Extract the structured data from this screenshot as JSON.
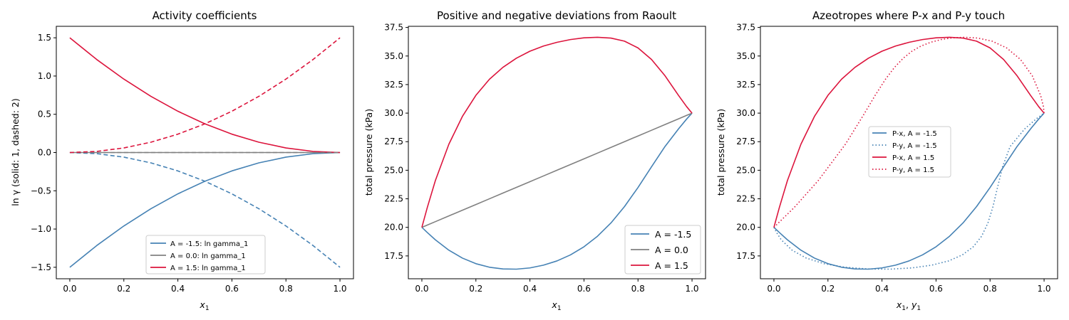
{
  "colors": {
    "neg": "#4682b4",
    "zero": "#808080",
    "pos": "#dc143c"
  },
  "chart_data": [
    {
      "type": "line",
      "title": "Activity coefficients",
      "xlabel": "x1",
      "ylabel": "ln γ (solid: 1, dashed: 2)",
      "xlim": [
        -0.05,
        1.05
      ],
      "ylim": [
        -1.65,
        1.65
      ],
      "xticks": [
        0.0,
        0.2,
        0.4,
        0.6,
        0.8,
        1.0
      ],
      "xtick_labels": [
        "0.0",
        "0.2",
        "0.4",
        "0.6",
        "0.8",
        "1.0"
      ],
      "yticks": [
        -1.5,
        -1.0,
        -0.5,
        0.0,
        0.5,
        1.0,
        1.5
      ],
      "ytick_labels": [
        "−1.5",
        "−1.0",
        "−0.5",
        "0.0",
        "0.5",
        "1.0",
        "1.5"
      ],
      "legend_position": "lower-center",
      "x": [
        0,
        0.1,
        0.2,
        0.3,
        0.4,
        0.5,
        0.6,
        0.7,
        0.8,
        0.9,
        1.0
      ],
      "series": [
        {
          "name": "A = -1.5: ln gamma_1",
          "color_key": "neg",
          "style": "solid",
          "legend": true,
          "y": [
            -1.5,
            -1.215,
            -0.96,
            -0.735,
            -0.54,
            -0.375,
            -0.24,
            -0.135,
            -0.06,
            -0.015,
            0
          ]
        },
        {
          "name": "A = 0.0: ln gamma_1",
          "color_key": "zero",
          "style": "solid",
          "legend": true,
          "y": [
            0,
            0,
            0,
            0,
            0,
            0,
            0,
            0,
            0,
            0,
            0
          ]
        },
        {
          "name": "A = 1.5: ln gamma_1",
          "color_key": "pos",
          "style": "solid",
          "legend": true,
          "y": [
            1.5,
            1.215,
            0.96,
            0.735,
            0.54,
            0.375,
            0.24,
            0.135,
            0.06,
            0.015,
            0
          ]
        },
        {
          "color_key": "neg",
          "style": "dashed",
          "legend": false,
          "y": [
            0,
            -0.015,
            -0.06,
            -0.135,
            -0.24,
            -0.375,
            -0.54,
            -0.735,
            -0.96,
            -1.215,
            -1.5
          ]
        },
        {
          "color_key": "zero",
          "style": "dashed",
          "legend": false,
          "y": [
            0,
            0,
            0,
            0,
            0,
            0,
            0,
            0,
            0,
            0,
            0
          ]
        },
        {
          "color_key": "pos",
          "style": "dashed",
          "legend": false,
          "y": [
            0,
            0.015,
            0.06,
            0.135,
            0.24,
            0.375,
            0.54,
            0.735,
            0.96,
            1.215,
            1.5
          ]
        }
      ]
    },
    {
      "type": "line",
      "title": "Positive and negative deviations from Raoult",
      "xlabel": "x1",
      "ylabel": "total pressure (kPa)",
      "xlim": [
        -0.05,
        1.05
      ],
      "ylim": [
        15.5,
        37.6
      ],
      "xticks": [
        0.0,
        0.2,
        0.4,
        0.6,
        0.8,
        1.0
      ],
      "xtick_labels": [
        "0.0",
        "0.2",
        "0.4",
        "0.6",
        "0.8",
        "1.0"
      ],
      "yticks": [
        17.5,
        20.0,
        22.5,
        25.0,
        27.5,
        30.0,
        32.5,
        35.0,
        37.5
      ],
      "ytick_labels": [
        "17.5",
        "20.0",
        "22.5",
        "25.0",
        "27.5",
        "30.0",
        "32.5",
        "35.0",
        "37.5"
      ],
      "legend_position": "lower-right",
      "x": [
        0,
        0.02,
        0.05,
        0.1,
        0.15,
        0.2,
        0.25,
        0.3,
        0.35,
        0.4,
        0.45,
        0.5,
        0.55,
        0.6,
        0.65,
        0.7,
        0.75,
        0.8,
        0.85,
        0.9,
        0.95,
        0.98,
        1.0
      ],
      "series": [
        {
          "name": "A = -1.5",
          "color_key": "neg",
          "style": "solid",
          "legend": true,
          "y": [
            20.0,
            19.55,
            18.91,
            18.0,
            17.31,
            16.82,
            16.51,
            16.36,
            16.34,
            16.45,
            16.69,
            17.06,
            17.59,
            18.3,
            19.22,
            20.39,
            21.82,
            23.49,
            25.3,
            27.08,
            28.62,
            29.48,
            30.0
          ]
        },
        {
          "name": "A = 0.0",
          "color_key": "zero",
          "style": "solid",
          "legend": true,
          "y": [
            20.0,
            20.2,
            20.5,
            21.0,
            21.5,
            22.0,
            22.5,
            23.0,
            23.5,
            24.0,
            24.5,
            25.0,
            25.5,
            26.0,
            26.5,
            27.0,
            27.5,
            28.0,
            28.5,
            29.0,
            29.5,
            29.8,
            30.0
          ]
        },
        {
          "name": "A = 1.5",
          "color_key": "pos",
          "style": "solid",
          "legend": true,
          "y": [
            20.0,
            21.73,
            24.1,
            27.28,
            29.71,
            31.56,
            32.96,
            34.01,
            34.81,
            35.42,
            35.87,
            36.2,
            36.44,
            36.59,
            36.64,
            36.57,
            36.3,
            35.71,
            34.7,
            33.27,
            31.55,
            30.57,
            30.0
          ]
        }
      ]
    },
    {
      "type": "line",
      "title": "Azeotropes where P-x and P-y touch",
      "xlabel": "x1, y1",
      "ylabel": "total pressure (kPa)",
      "xlim": [
        -0.05,
        1.05
      ],
      "ylim": [
        15.5,
        37.6
      ],
      "xticks": [
        0.0,
        0.2,
        0.4,
        0.6,
        0.8,
        1.0
      ],
      "xtick_labels": [
        "0.0",
        "0.2",
        "0.4",
        "0.6",
        "0.8",
        "1.0"
      ],
      "yticks": [
        17.5,
        20.0,
        22.5,
        25.0,
        27.5,
        30.0,
        32.5,
        35.0,
        37.5
      ],
      "ytick_labels": [
        "17.5",
        "20.0",
        "22.5",
        "25.0",
        "27.5",
        "30.0",
        "32.5",
        "35.0",
        "37.5"
      ],
      "legend_position": "center-left",
      "series": [
        {
          "name": "P-x, A = -1.5",
          "color_key": "neg",
          "style": "solid",
          "legend": true,
          "x": [
            0,
            0.02,
            0.05,
            0.1,
            0.15,
            0.2,
            0.25,
            0.3,
            0.35,
            0.4,
            0.45,
            0.5,
            0.55,
            0.6,
            0.65,
            0.7,
            0.75,
            0.8,
            0.85,
            0.9,
            0.95,
            0.98,
            1.0
          ],
          "y": [
            20.0,
            19.55,
            18.91,
            18.0,
            17.31,
            16.82,
            16.51,
            16.36,
            16.34,
            16.45,
            16.69,
            17.06,
            17.59,
            18.3,
            19.22,
            20.39,
            21.82,
            23.49,
            25.3,
            27.08,
            28.62,
            29.48,
            30.0
          ]
        },
        {
          "name": "P-y, A = -1.5",
          "color_key": "neg",
          "style": "dotted",
          "legend": true,
          "x": [
            0,
            0.0097,
            0.0271,
            0.0672,
            0.1197,
            0.1854,
            0.2622,
            0.3457,
            0.4304,
            0.5112,
            0.5841,
            0.6466,
            0.6976,
            0.7378,
            0.7687,
            0.7922,
            0.8109,
            0.8276,
            0.8463,
            0.8742,
            0.9282,
            0.9701,
            1.0
          ],
          "y": [
            20.0,
            19.55,
            18.91,
            18.0,
            17.31,
            16.82,
            16.51,
            16.36,
            16.34,
            16.45,
            16.69,
            17.06,
            17.59,
            18.3,
            19.22,
            20.39,
            21.82,
            23.49,
            25.3,
            27.08,
            28.62,
            29.48,
            30.0
          ]
        },
        {
          "name": "P-x, A = 1.5",
          "color_key": "pos",
          "style": "solid",
          "legend": true,
          "x": [
            0,
            0.02,
            0.05,
            0.1,
            0.15,
            0.2,
            0.25,
            0.3,
            0.35,
            0.4,
            0.45,
            0.5,
            0.55,
            0.6,
            0.65,
            0.7,
            0.75,
            0.8,
            0.85,
            0.9,
            0.95,
            0.98,
            1.0
          ],
          "y": [
            20.0,
            21.73,
            24.1,
            27.28,
            29.71,
            31.56,
            32.96,
            34.01,
            34.81,
            35.42,
            35.87,
            36.2,
            36.44,
            36.59,
            36.64,
            36.57,
            36.3,
            35.71,
            34.7,
            33.27,
            31.55,
            30.57,
            30.0
          ]
        },
        {
          "name": "P-y, A = 1.5",
          "color_key": "pos",
          "style": "dotted",
          "legend": true,
          "x": [
            0,
            0.0748,
            0.1641,
            0.2647,
            0.3283,
            0.3748,
            0.4127,
            0.4465,
            0.4787,
            0.5109,
            0.5443,
            0.5799,
            0.6183,
            0.6601,
            0.7057,
            0.7551,
            0.8076,
            0.8613,
            0.9126,
            0.9562,
            0.9871,
            0.9975,
            1.0
          ],
          "y": [
            20.0,
            21.73,
            24.1,
            27.28,
            29.71,
            31.56,
            32.96,
            34.01,
            34.81,
            35.42,
            35.87,
            36.2,
            36.44,
            36.59,
            36.64,
            36.57,
            36.3,
            35.71,
            34.7,
            33.27,
            31.55,
            30.57,
            30.0
          ]
        }
      ]
    }
  ]
}
